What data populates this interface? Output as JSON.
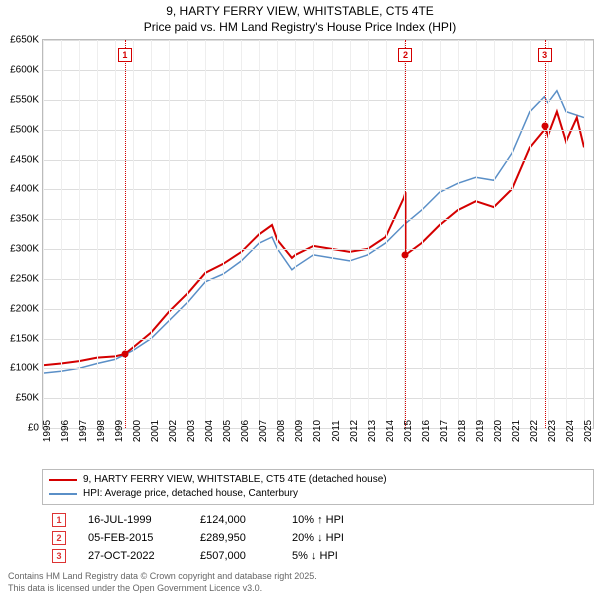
{
  "title": {
    "line1": "9, HARTY FERRY VIEW, WHITSTABLE, CT5 4TE",
    "line2": "Price paid vs. HM Land Registry's House Price Index (HPI)"
  },
  "chart": {
    "type": "line",
    "background_color": "#ffffff",
    "grid_color": "#dddddd",
    "grid_color_v": "#eeeeee",
    "axis_color": "#bbbbbb",
    "x_years": [
      1995,
      1996,
      1997,
      1998,
      1999,
      2000,
      2001,
      2002,
      2003,
      2004,
      2005,
      2006,
      2007,
      2008,
      2009,
      2010,
      2011,
      2012,
      2013,
      2014,
      2015,
      2016,
      2017,
      2018,
      2019,
      2020,
      2021,
      2022,
      2023,
      2024,
      2025
    ],
    "xlim": [
      1995,
      2025.5
    ],
    "ylim": [
      0,
      650
    ],
    "ytick_step": 50,
    "ytick_labels": [
      "£0",
      "£50K",
      "£100K",
      "£150K",
      "£200K",
      "£250K",
      "£300K",
      "£350K",
      "£400K",
      "£450K",
      "£500K",
      "£550K",
      "£600K",
      "£650K"
    ],
    "label_fontsize": 10,
    "series": {
      "property": {
        "color": "#d40000",
        "width": 2,
        "yr": [
          1995,
          1996,
          1997,
          1998,
          1999,
          1999.54,
          2000,
          2001,
          2002,
          2003,
          2004,
          2005,
          2006,
          2007,
          2007.7,
          2008,
          2008.8,
          2009,
          2010,
          2011,
          2012,
          2013,
          2014,
          2015,
          2015.1,
          2015.1,
          2016,
          2017,
          2018,
          2019,
          2020,
          2021,
          2022,
          2022.82,
          2022.82,
          2023,
          2023.5,
          2024,
          2024.6,
          2025
        ],
        "val": [
          105,
          108,
          112,
          118,
          120,
          124,
          135,
          160,
          195,
          225,
          260,
          275,
          295,
          325,
          340,
          315,
          285,
          290,
          305,
          300,
          295,
          300,
          320,
          385,
          395,
          290,
          310,
          340,
          365,
          380,
          370,
          400,
          470,
          500,
          507,
          490,
          530,
          480,
          520,
          470
        ]
      },
      "hpi": {
        "color": "#5a8fc7",
        "width": 1.5,
        "yr": [
          1995,
          1996,
          1997,
          1998,
          1999,
          2000,
          2001,
          2002,
          2003,
          2004,
          2005,
          2006,
          2007,
          2007.7,
          2008,
          2008.8,
          2009,
          2010,
          2011,
          2012,
          2013,
          2014,
          2015,
          2016,
          2017,
          2018,
          2019,
          2020,
          2021,
          2022,
          2022.8,
          2023,
          2023.5,
          2024,
          2025
        ],
        "val": [
          92,
          95,
          100,
          108,
          115,
          130,
          150,
          180,
          210,
          245,
          258,
          280,
          310,
          320,
          300,
          265,
          270,
          290,
          285,
          280,
          290,
          310,
          340,
          365,
          395,
          410,
          420,
          415,
          460,
          530,
          555,
          545,
          565,
          530,
          520
        ]
      }
    },
    "events_line_color": "#d40000",
    "events_box_color": "#d40000",
    "events": [
      {
        "n": "1",
        "year": 1999.54,
        "val": 124
      },
      {
        "n": "2",
        "year": 2015.1,
        "val": 290
      },
      {
        "n": "3",
        "year": 2022.82,
        "val": 507
      }
    ]
  },
  "legend": {
    "items": [
      {
        "color": "#d40000",
        "label": "9, HARTY FERRY VIEW, WHITSTABLE, CT5 4TE (detached house)"
      },
      {
        "color": "#5a8fc7",
        "label": "HPI: Average price, detached house, Canterbury"
      }
    ]
  },
  "events_table": [
    {
      "n": "1",
      "date": "16-JUL-1999",
      "price": "£124,000",
      "hpi": "10% ↑ HPI"
    },
    {
      "n": "2",
      "date": "05-FEB-2015",
      "price": "£289,950",
      "hpi": "20% ↓ HPI"
    },
    {
      "n": "3",
      "date": "27-OCT-2022",
      "price": "£507,000",
      "hpi": "5% ↓ HPI"
    }
  ],
  "footnote": {
    "line1": "Contains HM Land Registry data © Crown copyright and database right 2025.",
    "line2": "This data is licensed under the Open Government Licence v3.0."
  }
}
